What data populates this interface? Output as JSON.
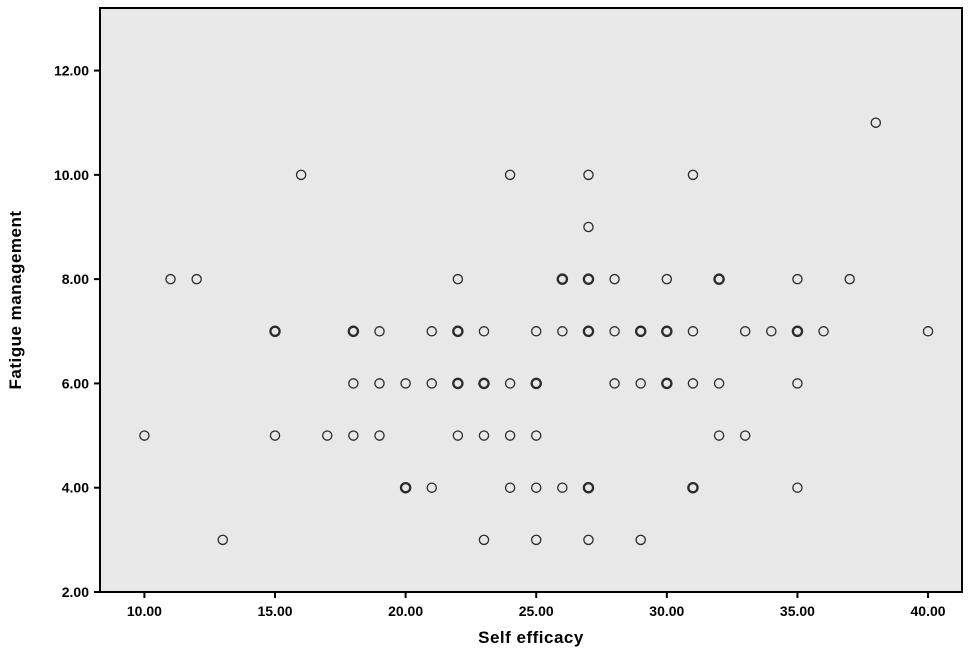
{
  "chart_data": {
    "type": "scatter",
    "title": "",
    "xlabel": "Self efficacy",
    "ylabel": "Fatigue management",
    "xlim": [
      8.3,
      41.3
    ],
    "ylim": [
      2,
      13.2
    ],
    "x_ticks": [
      10,
      15,
      20,
      25,
      30,
      35,
      40
    ],
    "x_tick_labels": [
      "10.00",
      "15.00",
      "20.00",
      "25.00",
      "30.00",
      "35.00",
      "40.00"
    ],
    "y_ticks": [
      2,
      4,
      6,
      8,
      10,
      12
    ],
    "y_tick_labels": [
      "2.00",
      "4.00",
      "6.00",
      "8.00",
      "10.00",
      "12.00"
    ],
    "grid": false,
    "legend": "none",
    "marker": "open-circle",
    "plot_bg": "#e8e8e8",
    "frame_color": "#000000",
    "marker_color": "#2b2b2b",
    "points": [
      [
        38,
        11,
        0
      ],
      [
        16,
        10,
        0
      ],
      [
        24,
        10,
        0
      ],
      [
        27,
        10,
        0
      ],
      [
        31,
        10,
        0
      ],
      [
        27,
        9,
        0
      ],
      [
        11,
        8,
        0
      ],
      [
        12,
        8,
        0
      ],
      [
        22,
        8,
        0
      ],
      [
        26,
        8,
        1
      ],
      [
        27,
        8,
        1
      ],
      [
        28,
        8,
        0
      ],
      [
        30,
        8,
        0
      ],
      [
        32,
        8,
        1
      ],
      [
        35,
        8,
        0
      ],
      [
        37,
        8,
        0
      ],
      [
        15,
        7,
        1
      ],
      [
        18,
        7,
        1
      ],
      [
        19,
        7,
        0
      ],
      [
        21,
        7,
        0
      ],
      [
        22,
        7,
        1
      ],
      [
        23,
        7,
        0
      ],
      [
        25,
        7,
        0
      ],
      [
        26,
        7,
        0
      ],
      [
        27,
        7,
        1
      ],
      [
        28,
        7,
        0
      ],
      [
        29,
        7,
        1
      ],
      [
        30,
        7,
        1
      ],
      [
        31,
        7,
        0
      ],
      [
        33,
        7,
        0
      ],
      [
        34,
        7,
        0
      ],
      [
        35,
        7,
        1
      ],
      [
        36,
        7,
        0
      ],
      [
        40,
        7,
        0
      ],
      [
        18,
        6,
        0
      ],
      [
        19,
        6,
        0
      ],
      [
        20,
        6,
        0
      ],
      [
        21,
        6,
        0
      ],
      [
        22,
        6,
        1
      ],
      [
        23,
        6,
        1
      ],
      [
        24,
        6,
        0
      ],
      [
        25,
        6,
        1
      ],
      [
        28,
        6,
        0
      ],
      [
        29,
        6,
        0
      ],
      [
        30,
        6,
        1
      ],
      [
        31,
        6,
        0
      ],
      [
        32,
        6,
        0
      ],
      [
        35,
        6,
        0
      ],
      [
        10,
        5,
        0
      ],
      [
        15,
        5,
        0
      ],
      [
        17,
        5,
        0
      ],
      [
        18,
        5,
        0
      ],
      [
        19,
        5,
        0
      ],
      [
        22,
        5,
        0
      ],
      [
        23,
        5,
        0
      ],
      [
        24,
        5,
        0
      ],
      [
        25,
        5,
        0
      ],
      [
        32,
        5,
        0
      ],
      [
        33,
        5,
        0
      ],
      [
        20,
        4,
        1
      ],
      [
        21,
        4,
        0
      ],
      [
        24,
        4,
        0
      ],
      [
        25,
        4,
        0
      ],
      [
        26,
        4,
        0
      ],
      [
        27,
        4,
        1
      ],
      [
        31,
        4,
        1
      ],
      [
        35,
        4,
        0
      ],
      [
        13,
        3,
        0
      ],
      [
        23,
        3,
        0
      ],
      [
        25,
        3,
        0
      ],
      [
        27,
        3,
        0
      ],
      [
        29,
        3,
        0
      ]
    ]
  }
}
